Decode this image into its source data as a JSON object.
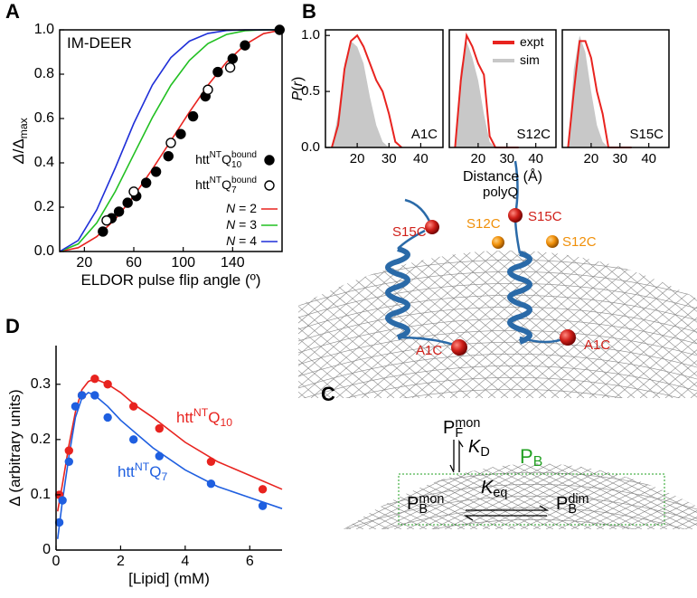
{
  "panel_labels": [
    "A",
    "B",
    "C",
    "D"
  ],
  "structure": {
    "labels": [
      "polyQ",
      "S15C",
      "S12C",
      "S15C",
      "S12C",
      "A1C",
      "A1C"
    ]
  },
  "scheme": {
    "free": "P_{F}^{mon}",
    "kd": "*{K}_{D}",
    "bound": "P_{B}",
    "bound_mon": "P_{B}^{mon}",
    "keq": "*{K}_{eq}",
    "bound_dim": "P_{B}^{dim}"
  },
  "chart_data": [
    {
      "type": "line",
      "annotation": "IM-DEER",
      "xlabel": "ELDOR pulse flip angle (º)",
      "ylabel": "*{Δ}/Δ_{max}",
      "xlim": [
        0,
        180
      ],
      "ylim": [
        0,
        1.0
      ],
      "xticks": [
        20,
        60,
        100,
        140
      ],
      "yticks": [
        {
          "value": 0,
          "label": "0.0"
        },
        {
          "value": 0.2,
          "label": "0.2"
        },
        {
          "value": 0.4,
          "label": "0.4"
        },
        {
          "value": 0.6,
          "label": "0.6"
        },
        {
          "value": 0.8,
          "label": "0.8"
        },
        {
          "value": 1.0,
          "label": "1.0"
        }
      ],
      "legend": "lower right",
      "series": [
        {
          "name": "htt^{NT}Q_{10}^{bound}",
          "mode": "markers",
          "color": "#000000",
          "fill": "#000000",
          "x": [
            35,
            42,
            48,
            55,
            62,
            70,
            78,
            88,
            98,
            108,
            118,
            128,
            140,
            150,
            178
          ],
          "values": [
            0.09,
            0.15,
            0.18,
            0.22,
            0.25,
            0.31,
            0.36,
            0.43,
            0.53,
            0.61,
            0.7,
            0.81,
            0.87,
            0.93,
            1.0
          ]
        },
        {
          "name": "htt^{NT}Q_{7}^{bound}",
          "mode": "markers",
          "color": "#000000",
          "fill": "#ffffff",
          "x": [
            38,
            60,
            90,
            120,
            138
          ],
          "values": [
            0.14,
            0.27,
            0.49,
            0.73,
            0.83
          ]
        },
        {
          "name": "*{N} = 2",
          "mode": "lines",
          "color": "#e8231f",
          "x": [
            0,
            15,
            30,
            45,
            60,
            75,
            90,
            105,
            120,
            135,
            150,
            165,
            180
          ],
          "values": [
            0,
            0.017,
            0.067,
            0.146,
            0.25,
            0.371,
            0.5,
            0.629,
            0.75,
            0.854,
            0.933,
            0.983,
            1
          ]
        },
        {
          "name": "*{N} = 3",
          "mode": "lines",
          "color": "#22c022",
          "x": [
            0,
            15,
            30,
            45,
            60,
            75,
            90,
            105,
            120,
            135,
            150,
            165,
            180
          ],
          "values": [
            0,
            0.034,
            0.129,
            0.271,
            0.438,
            0.604,
            0.75,
            0.862,
            0.938,
            0.979,
            0.996,
            1.0,
            1
          ]
        },
        {
          "name": "*{N} = 4",
          "mode": "lines",
          "color": "#1f2fd8",
          "x": [
            0,
            15,
            30,
            45,
            60,
            75,
            90,
            105,
            120,
            135,
            150,
            165,
            180
          ],
          "values": [
            0,
            0.05,
            0.188,
            0.377,
            0.578,
            0.751,
            0.875,
            0.949,
            0.984,
            0.997,
            1.0,
            1.0,
            1
          ]
        }
      ]
    },
    {
      "type": "line",
      "label": "A1C",
      "ylabel": "*{P}(*{r})",
      "xlim": [
        10,
        47
      ],
      "ylim": [
        0,
        1.05
      ],
      "xticks": [
        20,
        30,
        40
      ],
      "yticks": [
        {
          "value": 0,
          "label": "0.0"
        },
        {
          "value": 0.5,
          "label": "0.5"
        },
        {
          "value": 1.0,
          "label": "1.0"
        }
      ],
      "x": [
        12,
        14,
        16,
        18,
        20,
        22,
        24,
        26,
        28,
        30,
        32,
        34
      ],
      "series": [
        {
          "name": "sim",
          "mode": "area",
          "color": "#c8c8c8",
          "values": [
            0,
            0.3,
            0.75,
            0.95,
            0.9,
            0.75,
            0.45,
            0.2,
            0.05,
            0,
            0,
            0
          ]
        },
        {
          "name": "expt",
          "mode": "lines",
          "color": "#e8231f",
          "values": [
            0,
            0.2,
            0.7,
            0.95,
            1.0,
            0.9,
            0.75,
            0.6,
            0.5,
            0.3,
            0.05,
            0
          ]
        }
      ]
    },
    {
      "type": "line",
      "label": "S12C",
      "xlabel": "Distance (Å)",
      "legend": "upper right",
      "xlim": [
        10,
        47
      ],
      "ylim": [
        0,
        1.05
      ],
      "xticks": [
        20,
        30,
        40
      ],
      "x": [
        12,
        14,
        16,
        18,
        20,
        22,
        24,
        26,
        28,
        30,
        32,
        34
      ],
      "series": [
        {
          "name": "sim",
          "mode": "area",
          "color": "#c8c8c8",
          "values": [
            0,
            0.7,
            0.95,
            0.8,
            0.6,
            0.3,
            0.05,
            0,
            0,
            0,
            0,
            0
          ]
        },
        {
          "name": "expt",
          "mode": "lines",
          "color": "#e8231f",
          "values": [
            0,
            0.6,
            1.0,
            0.9,
            0.75,
            0.65,
            0.1,
            0,
            0,
            0,
            0,
            0
          ]
        }
      ]
    },
    {
      "type": "line",
      "label": "S15C",
      "xlim": [
        10,
        47
      ],
      "ylim": [
        0,
        1.05
      ],
      "xticks": [
        20,
        30,
        40
      ],
      "x": [
        12,
        14,
        16,
        18,
        20,
        22,
        24,
        26,
        28,
        30,
        32,
        34
      ],
      "series": [
        {
          "name": "sim",
          "mode": "area",
          "color": "#c8c8c8",
          "values": [
            0,
            0.7,
            1.0,
            0.85,
            0.5,
            0.2,
            0.05,
            0,
            0,
            0,
            0,
            0
          ]
        },
        {
          "name": "expt",
          "mode": "lines",
          "color": "#e8231f",
          "values": [
            0,
            0.5,
            0.95,
            0.95,
            0.8,
            0.5,
            0.3,
            0,
            0,
            0,
            0,
            0
          ]
        }
      ]
    },
    {
      "type": "line",
      "xlabel": "[Lipid] (mM)",
      "ylabel": "Δ (arbitrary units)",
      "xlim": [
        0,
        7
      ],
      "ylim": [
        0,
        0.37
      ],
      "xticks": [
        0,
        2,
        4,
        6
      ],
      "yticks": [
        0,
        0.1,
        0.2,
        0.3
      ],
      "series": [
        {
          "name": "htt^{NT}Q_{10}",
          "mode": "markers",
          "color": "#e8231f",
          "fill": "#e8231f",
          "x": [
            0.1,
            0.4,
            0.8,
            1.2,
            1.6,
            2.4,
            3.2,
            4.8,
            6.4
          ],
          "values": [
            0.1,
            0.18,
            0.28,
            0.31,
            0.3,
            0.26,
            0.22,
            0.16,
            0.11
          ]
        },
        {
          "name": "htt^{NT}Q_{7}",
          "mode": "markers",
          "color": "#1f5fe0",
          "fill": "#1f5fe0",
          "x": [
            0.1,
            0.2,
            0.4,
            0.6,
            0.8,
            1.2,
            1.6,
            2.4,
            3.2,
            4.8,
            6.4
          ],
          "values": [
            0.05,
            0.09,
            0.16,
            0.26,
            0.28,
            0.28,
            0.24,
            0.2,
            0.17,
            0.12,
            0.08
          ]
        },
        {
          "mode": "lines",
          "color": "#e8231f",
          "x": [
            0.05,
            0.2,
            0.4,
            0.6,
            0.8,
            1.0,
            1.2,
            1.6,
            2,
            2.5,
            3,
            4,
            5,
            6,
            7
          ],
          "values": [
            0.07,
            0.12,
            0.19,
            0.25,
            0.29,
            0.305,
            0.31,
            0.3,
            0.285,
            0.26,
            0.24,
            0.195,
            0.16,
            0.135,
            0.11
          ]
        },
        {
          "mode": "lines",
          "color": "#1f5fe0",
          "x": [
            0.05,
            0.2,
            0.4,
            0.6,
            0.8,
            1.0,
            1.2,
            1.6,
            2,
            2.5,
            3,
            4,
            5,
            6,
            7
          ],
          "values": [
            0.02,
            0.09,
            0.17,
            0.24,
            0.275,
            0.285,
            0.28,
            0.26,
            0.235,
            0.21,
            0.185,
            0.145,
            0.115,
            0.095,
            0.075
          ]
        }
      ]
    }
  ]
}
